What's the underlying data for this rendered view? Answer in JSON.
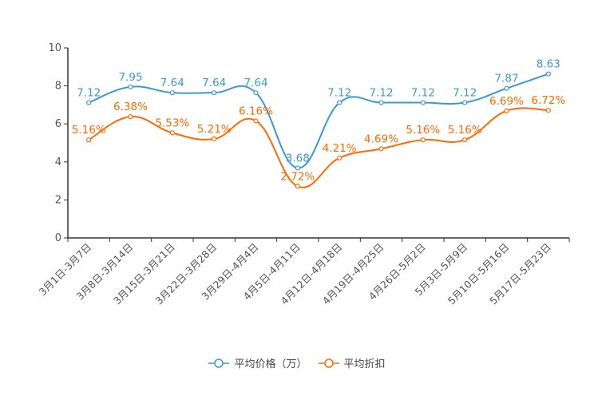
{
  "chart_data": {
    "type": "line",
    "title": "",
    "xlabel": "",
    "ylabel": "",
    "ylim": [
      0,
      10
    ],
    "yticks": [
      "0",
      "2",
      "4",
      "6",
      "8",
      "10"
    ],
    "grid": false,
    "legend_position": "bottom",
    "categories": [
      "3月1日-3月7日",
      "3月8日-3月14日",
      "3月15日-3月21日",
      "3月22日-3月28日",
      "3月29日-4月4日",
      "4月5日-4月11日",
      "4月12日-4月18日",
      "4月19日-4月25日",
      "4月26日-5月2日",
      "5月3日-5月9日",
      "5月10日-5月16日",
      "5月17日-5月23日"
    ],
    "series": [
      {
        "name": "平均价格（万）",
        "color": "#3a9ad1",
        "values": [
          7.12,
          7.95,
          7.64,
          7.64,
          7.64,
          3.68,
          7.12,
          7.12,
          7.12,
          7.12,
          7.87,
          8.63
        ],
        "labels": [
          "7.12",
          "7.95",
          "7.64",
          "7.64",
          "7.64",
          "3.68",
          "7.12",
          "7.12",
          "7.12",
          "7.12",
          "7.87",
          "8.63"
        ]
      },
      {
        "name": "平均折扣",
        "color": "#ff6a00",
        "values": [
          5.16,
          6.38,
          5.53,
          5.21,
          6.16,
          2.72,
          4.21,
          4.69,
          5.16,
          5.16,
          6.69,
          6.72
        ],
        "labels": [
          "5.16%",
          "6.38%",
          "5.53%",
          "5.21%",
          "6.16%",
          "2.72%",
          "4.21%",
          "4.69%",
          "5.16%",
          "5.16%",
          "6.69%",
          "6.72%"
        ]
      }
    ]
  }
}
